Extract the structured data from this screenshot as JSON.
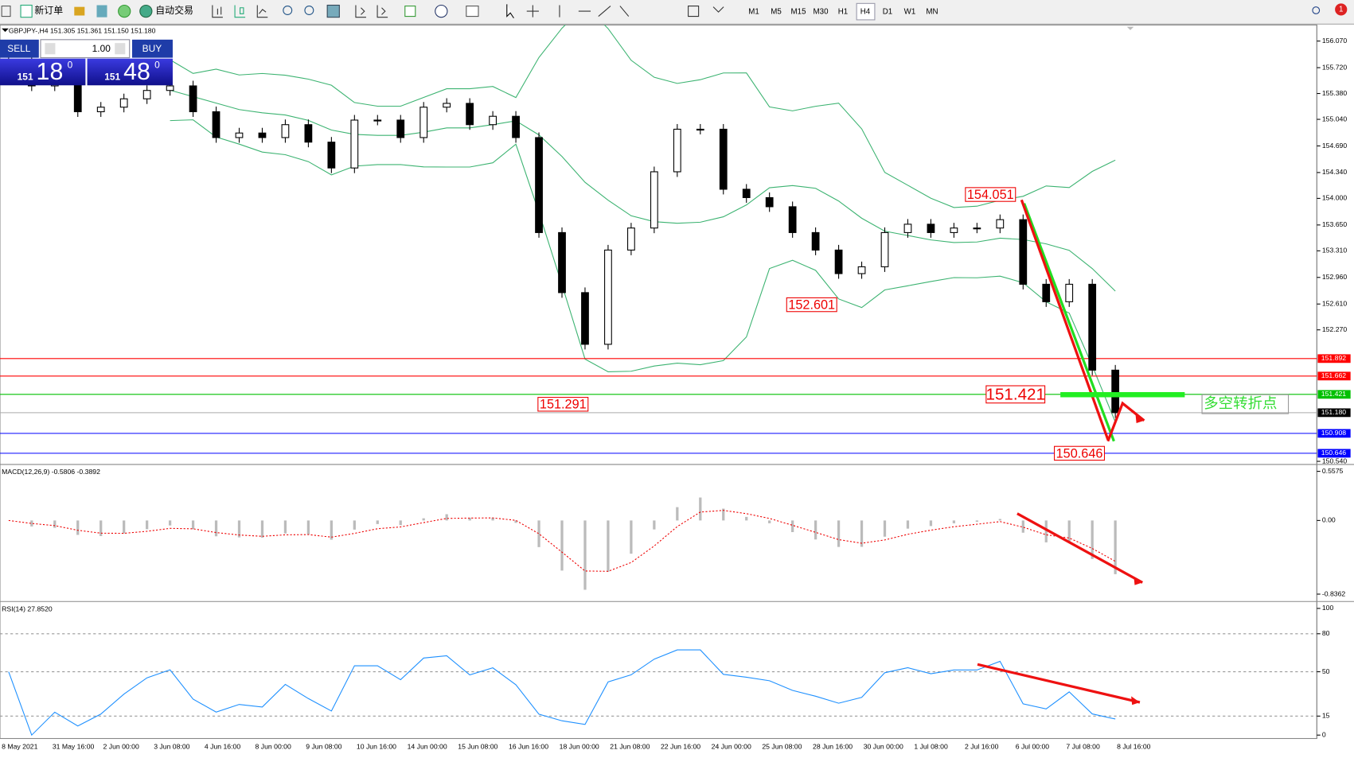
{
  "toolbar": {
    "new_order": "新订单",
    "auto_trading": "自动交易",
    "timeframes": [
      "M1",
      "M5",
      "M15",
      "M30",
      "H1",
      "H4",
      "D1",
      "W1",
      "MN"
    ],
    "badge": "1"
  },
  "one_click": {
    "sell": "SELL",
    "lot": "1.00",
    "buy": "BUY",
    "bid_big": "151",
    "bid_pips": "18",
    "bid_frac": "0",
    "ask_big": "151",
    "ask_pips": "48",
    "ask_frac": "0"
  },
  "chart_data": [
    {
      "type": "candlestick",
      "title": "GBPJPY-,H4 151.305 151.361 151.150 151.180",
      "close": [
        155.82,
        155.48,
        155.54,
        155.14,
        155.2,
        155.31,
        155.42,
        155.48,
        155.14,
        154.8,
        154.86,
        154.8,
        154.97,
        154.74,
        154.4,
        155.03,
        155.03,
        154.8,
        155.2,
        155.25,
        154.97,
        155.08,
        154.8,
        153.55,
        152.76,
        152.08,
        153.32,
        153.61,
        154.35,
        154.91,
        154.91,
        154.12,
        154.01,
        153.89,
        153.55,
        153.32,
        153.01,
        153.1,
        153.55,
        153.66,
        153.55,
        153.61,
        153.61,
        153.72,
        152.87,
        152.64,
        152.87,
        151.74,
        151.18
      ],
      "ylim": [
        150.51,
        156.27
      ],
      "yticks": [
        {
          "value": 156.07,
          "label": "156.070"
        },
        {
          "value": 155.72,
          "label": "155.720"
        },
        {
          "value": 155.38,
          "label": "155.380"
        },
        {
          "value": 155.04,
          "label": "155.040"
        },
        {
          "value": 154.69,
          "label": "154.690"
        },
        {
          "value": 154.34,
          "label": "154.340"
        },
        {
          "value": 154.0,
          "label": "154.000"
        },
        {
          "value": 153.65,
          "label": "153.650"
        },
        {
          "value": 153.31,
          "label": "153.310"
        },
        {
          "value": 152.96,
          "label": "152.960"
        },
        {
          "value": 152.61,
          "label": "152.610"
        },
        {
          "value": 152.27,
          "label": "152.270"
        },
        {
          "value": 150.54,
          "label": "150.540"
        }
      ],
      "levels": [
        151.892,
        151.662,
        151.421,
        150.908,
        150.646
      ],
      "level_colors": [
        "#ff0000",
        "#ff0000",
        "#00c000",
        "#0000ff",
        "#0000ff"
      ],
      "last_price": {
        "value": 151.18,
        "label": "151.180"
      },
      "annotations": [
        154.051,
        152.601,
        151.291,
        151.421,
        150.646
      ],
      "turning_point": "多空转折点",
      "x_labels": [
        "8 May 2021",
        "31 May 16:00",
        "2 Jun 00:00",
        "3 Jun 08:00",
        "4 Jun 16:00",
        "8 Jun 00:00",
        "9 Jun 08:00",
        "10 Jun 16:00",
        "14 Jun 00:00",
        "15 Jun 08:00",
        "16 Jun 16:00",
        "18 Jun 00:00",
        "21 Jun 08:00",
        "22 Jun 16:00",
        "24 Jun 00:00",
        "25 Jun 08:00",
        "28 Jun 16:00",
        "30 Jun 00:00",
        "1 Jul 08:00",
        "2 Jul 16:00",
        "6 Jul 00:00",
        "7 Jul 08:00",
        "8 Jul 16:00"
      ]
    },
    {
      "type": "macd",
      "title": "MACD(12,26,9) -0.5806 -0.3892",
      "ylim": [
        -0.91,
        0.616
      ],
      "yticks": [
        0.5575,
        {
          "value": 0,
          "label": "0.00"
        },
        -0.8362
      ]
    },
    {
      "type": "rsi",
      "title": "RSI(14) 27.8520",
      "ylim": [
        -2.7,
        104.1
      ],
      "yticks": [
        100,
        80,
        50,
        15,
        0
      ]
    }
  ]
}
